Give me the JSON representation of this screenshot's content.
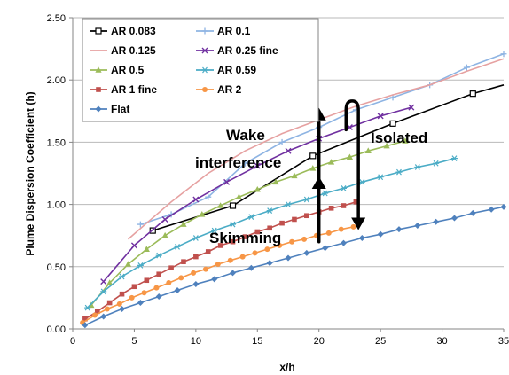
{
  "chart_data": {
    "type": "line",
    "xlabel": "x/h",
    "ylabel": "Plume Dispersion Coefficient (h)",
    "xlim": [
      0,
      35
    ],
    "ylim": [
      0,
      2.5
    ],
    "xticks": [
      "0",
      "5",
      "10",
      "15",
      "20",
      "25",
      "30",
      "35"
    ],
    "yticks": [
      "0.00",
      "0.50",
      "1.00",
      "1.50",
      "2.00",
      "2.50"
    ],
    "grid": "horizontal",
    "legend_position": "top-left",
    "annotations": [
      "Wake",
      "interference",
      "Isolated",
      "Skimming"
    ],
    "series": [
      {
        "name": "AR 0.083",
        "color": "#000000",
        "marker": "square-open",
        "x": [
          6.5,
          13,
          19.5,
          26,
          32.5,
          35
        ],
        "y": [
          0.79,
          0.99,
          1.39,
          1.65,
          1.89,
          1.96
        ]
      },
      {
        "name": "AR 0.1",
        "color": "#8EB4E3",
        "marker": "plus",
        "x": [
          5.5,
          8,
          11,
          14,
          17,
          20,
          23,
          26,
          29,
          32,
          35
        ],
        "y": [
          0.84,
          0.92,
          1.06,
          1.33,
          1.5,
          1.62,
          1.76,
          1.86,
          1.96,
          2.1,
          2.21
        ]
      },
      {
        "name": "AR 0.125",
        "color": "#E6A1A1",
        "marker": "none",
        "x": [
          4.5,
          6,
          8,
          11,
          14,
          17,
          20,
          23,
          26,
          29,
          32,
          35
        ],
        "y": [
          0.72,
          0.85,
          1.02,
          1.25,
          1.43,
          1.57,
          1.68,
          1.79,
          1.88,
          1.96,
          2.07,
          2.17
        ]
      },
      {
        "name": "AR 0.25 fine",
        "color": "#7030A0",
        "marker": "x",
        "x": [
          2.5,
          5,
          7.5,
          10,
          12.5,
          15,
          17.5,
          20,
          22.5,
          25,
          27.5
        ],
        "y": [
          0.38,
          0.67,
          0.88,
          1.04,
          1.18,
          1.31,
          1.43,
          1.53,
          1.62,
          1.71,
          1.78
        ]
      },
      {
        "name": "AR 0.5",
        "color": "#9BBB59",
        "marker": "triangle",
        "x": [
          1.5,
          3,
          4.5,
          6,
          7.5,
          9,
          10.5,
          12,
          13.5,
          15,
          16.5,
          18,
          19.5,
          21,
          22.5,
          24,
          25.5,
          27
        ],
        "y": [
          0.19,
          0.37,
          0.52,
          0.64,
          0.75,
          0.84,
          0.92,
          0.99,
          1.06,
          1.12,
          1.18,
          1.23,
          1.29,
          1.34,
          1.38,
          1.43,
          1.47,
          1.51
        ]
      },
      {
        "name": "AR 0.59",
        "color": "#4BACC6",
        "marker": "asterisk",
        "x": [
          1.2,
          2.5,
          4,
          5.5,
          7,
          8.5,
          10,
          11.5,
          13,
          14.5,
          16,
          17.5,
          19,
          20.5,
          22,
          23.5,
          25,
          26.5,
          28,
          29.5,
          31
        ],
        "y": [
          0.17,
          0.3,
          0.42,
          0.51,
          0.59,
          0.66,
          0.73,
          0.79,
          0.84,
          0.9,
          0.95,
          1.0,
          1.04,
          1.09,
          1.13,
          1.18,
          1.22,
          1.26,
          1.3,
          1.33,
          1.37
        ]
      },
      {
        "name": "AR 1 fine",
        "color": "#C0504D",
        "marker": "square",
        "x": [
          1,
          2,
          3,
          4,
          5,
          6,
          7,
          8,
          9,
          10,
          11,
          12,
          13,
          14,
          15,
          16,
          17,
          18,
          19,
          20,
          21,
          22,
          23
        ],
        "y": [
          0.08,
          0.14,
          0.21,
          0.28,
          0.34,
          0.39,
          0.44,
          0.49,
          0.54,
          0.58,
          0.62,
          0.67,
          0.7,
          0.74,
          0.78,
          0.81,
          0.85,
          0.88,
          0.91,
          0.94,
          0.97,
          0.99,
          1.02
        ]
      },
      {
        "name": "AR 2",
        "color": "#F79646",
        "marker": "circle",
        "x": [
          0.8,
          1.8,
          2.8,
          3.8,
          4.8,
          5.8,
          6.8,
          7.8,
          8.8,
          9.8,
          10.8,
          11.8,
          12.8,
          13.8,
          14.8,
          15.8,
          16.8,
          17.8,
          18.8,
          19.8,
          20.8,
          21.8,
          22.8
        ],
        "y": [
          0.05,
          0.11,
          0.16,
          0.2,
          0.25,
          0.29,
          0.33,
          0.37,
          0.41,
          0.45,
          0.48,
          0.52,
          0.55,
          0.58,
          0.61,
          0.64,
          0.67,
          0.7,
          0.72,
          0.75,
          0.77,
          0.8,
          0.82
        ]
      },
      {
        "name": "Flat",
        "color": "#4F81BD",
        "marker": "diamond",
        "x": [
          1,
          2.5,
          4,
          5.5,
          7,
          8.5,
          10,
          11.5,
          13,
          14.5,
          16,
          17.5,
          19,
          20.5,
          22,
          23.5,
          25,
          26.5,
          28,
          29.5,
          31,
          32.5,
          34,
          35
        ],
        "y": [
          0.03,
          0.1,
          0.16,
          0.21,
          0.26,
          0.31,
          0.36,
          0.4,
          0.45,
          0.49,
          0.53,
          0.57,
          0.61,
          0.65,
          0.69,
          0.73,
          0.76,
          0.8,
          0.83,
          0.86,
          0.89,
          0.93,
          0.96,
          0.98
        ]
      }
    ]
  }
}
